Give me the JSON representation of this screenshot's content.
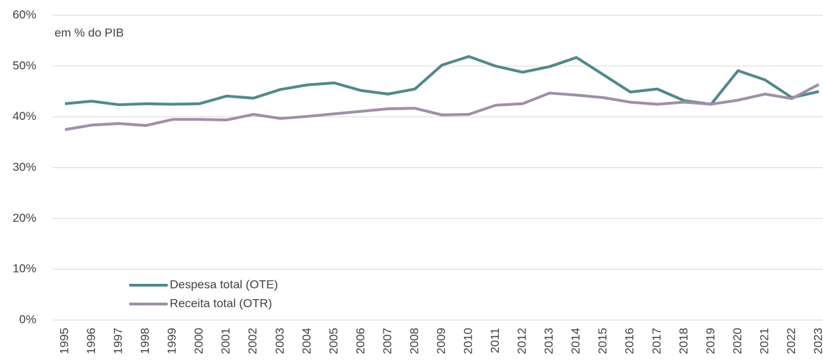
{
  "chart_data": {
    "type": "line",
    "annotation": "em % do PIB",
    "categories": [
      "1995",
      "1996",
      "1997",
      "1998",
      "1999",
      "2000",
      "2001",
      "2002",
      "2003",
      "2004",
      "2005",
      "2006",
      "2007",
      "2008",
      "2009",
      "2010",
      "2011",
      "2012",
      "2013",
      "2014",
      "2015",
      "2016",
      "2017",
      "2018",
      "2019",
      "2020",
      "2021",
      "2022",
      "2023"
    ],
    "series": [
      {
        "name": "Despesa total (OTE)",
        "color": "#4f8a8b",
        "values": [
          42.6,
          43.1,
          42.4,
          42.6,
          42.5,
          42.6,
          44.1,
          43.7,
          45.4,
          46.3,
          46.7,
          45.2,
          44.5,
          45.5,
          50.2,
          51.9,
          50.0,
          48.8,
          49.9,
          51.7,
          48.3,
          44.9,
          45.5,
          43.2,
          42.5,
          49.1,
          47.3,
          43.8,
          45.0
        ]
      },
      {
        "name": "Receita total (OTR)",
        "color": "#a08fa6",
        "values": [
          37.5,
          38.4,
          38.7,
          38.3,
          39.5,
          39.5,
          39.4,
          40.5,
          39.7,
          40.1,
          40.6,
          41.1,
          41.6,
          41.7,
          40.4,
          40.5,
          42.3,
          42.6,
          44.7,
          44.3,
          43.8,
          42.9,
          42.5,
          42.9,
          42.5,
          43.3,
          44.5,
          43.6,
          46.4
        ]
      }
    ],
    "ylim": [
      0,
      60
    ],
    "yticks": [
      {
        "value": 0,
        "label": "0%"
      },
      {
        "value": 10,
        "label": "10%"
      },
      {
        "value": 20,
        "label": "20%"
      },
      {
        "value": 30,
        "label": "30%"
      },
      {
        "value": 40,
        "label": "40%"
      },
      {
        "value": 50,
        "label": "50%"
      },
      {
        "value": 60,
        "label": "60%"
      }
    ],
    "grid": true,
    "legend": "lower left"
  }
}
